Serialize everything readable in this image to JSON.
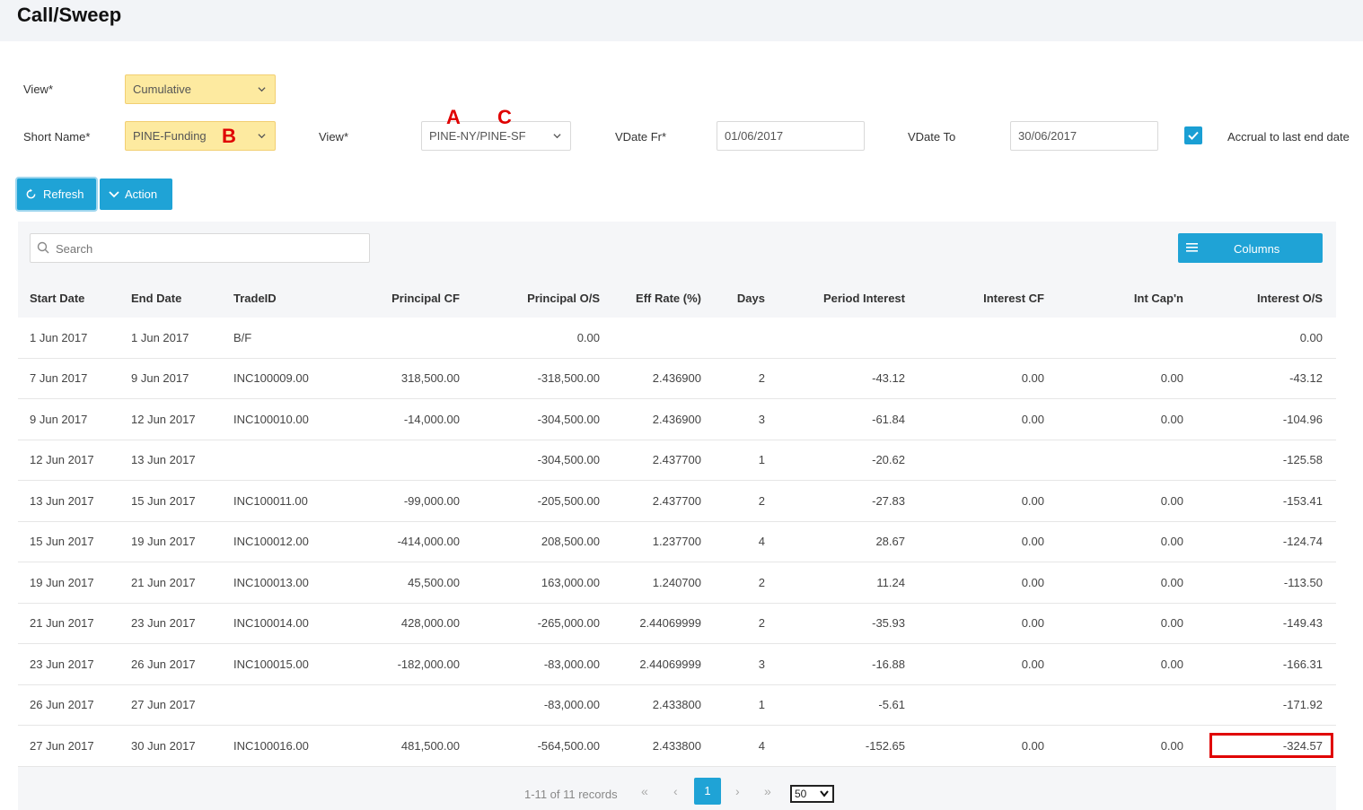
{
  "page": {
    "title": "Call/Sweep"
  },
  "form": {
    "view1": {
      "label": "View*",
      "value": "Cumulative"
    },
    "short_name": {
      "label": "Short Name*",
      "value": "PINE-Funding",
      "marker": "B"
    },
    "view2": {
      "label": "View*",
      "value": "PINE-NY/PINE-SF",
      "marker_a": "A",
      "marker_c": "C"
    },
    "vdate_from": {
      "label": "VDate Fr*",
      "value": "01/06/2017"
    },
    "vdate_to": {
      "label": "VDate To",
      "value": "30/06/2017"
    },
    "accrual": {
      "label": "Accrual to last end date",
      "checked": true
    }
  },
  "toolbar": {
    "refresh_label": "Refresh",
    "action_label": "Action"
  },
  "grid": {
    "search_placeholder": "Search",
    "columns_label": "Columns",
    "headers": [
      "Start Date",
      "End Date",
      "TradeID",
      "Principal CF",
      "Principal O/S",
      "Eff Rate (%)",
      "Days",
      "Period Interest",
      "Interest CF",
      "Int Cap'n",
      "Interest O/S"
    ],
    "rows": [
      [
        "1 Jun 2017",
        "1 Jun 2017",
        "B/F",
        "",
        "0.00",
        "",
        "",
        "",
        "",
        "",
        "0.00"
      ],
      [
        "7 Jun 2017",
        "9 Jun 2017",
        "INC100009.00",
        "318,500.00",
        "-318,500.00",
        "2.436900",
        "2",
        "-43.12",
        "0.00",
        "0.00",
        "-43.12"
      ],
      [
        "9 Jun 2017",
        "12 Jun 2017",
        "INC100010.00",
        "-14,000.00",
        "-304,500.00",
        "2.436900",
        "3",
        "-61.84",
        "0.00",
        "0.00",
        "-104.96"
      ],
      [
        "12 Jun 2017",
        "13 Jun 2017",
        "",
        "",
        "-304,500.00",
        "2.437700",
        "1",
        "-20.62",
        "",
        "",
        "-125.58"
      ],
      [
        "13 Jun 2017",
        "15 Jun 2017",
        "INC100011.00",
        "-99,000.00",
        "-205,500.00",
        "2.437700",
        "2",
        "-27.83",
        "0.00",
        "0.00",
        "-153.41"
      ],
      [
        "15 Jun 2017",
        "19 Jun 2017",
        "INC100012.00",
        "-414,000.00",
        "208,500.00",
        "1.237700",
        "4",
        "28.67",
        "0.00",
        "0.00",
        "-124.74"
      ],
      [
        "19 Jun 2017",
        "21 Jun 2017",
        "INC100013.00",
        "45,500.00",
        "163,000.00",
        "1.240700",
        "2",
        "11.24",
        "0.00",
        "0.00",
        "-113.50"
      ],
      [
        "21 Jun 2017",
        "23 Jun 2017",
        "INC100014.00",
        "428,000.00",
        "-265,000.00",
        "2.44069999",
        "2",
        "-35.93",
        "0.00",
        "0.00",
        "-149.43"
      ],
      [
        "23 Jun 2017",
        "26 Jun 2017",
        "INC100015.00",
        "-182,000.00",
        "-83,000.00",
        "2.44069999",
        "3",
        "-16.88",
        "0.00",
        "0.00",
        "-166.31"
      ],
      [
        "26 Jun 2017",
        "27 Jun 2017",
        "",
        "",
        "-83,000.00",
        "2.433800",
        "1",
        "-5.61",
        "",
        "",
        "-171.92"
      ],
      [
        "27 Jun 2017",
        "30 Jun 2017",
        "INC100016.00",
        "481,500.00",
        "-564,500.00",
        "2.433800",
        "4",
        "-152.65",
        "0.00",
        "0.00",
        "-324.57"
      ]
    ]
  },
  "pagination": {
    "records_text": "1-11 of 11 records",
    "first": "«",
    "prev": "‹",
    "next": "›",
    "last": "»",
    "current_page": "1",
    "page_size": "50"
  },
  "colors": {
    "accent": "#1fa3d6",
    "highlight": "#e00000",
    "yellow": "#fdeaa0"
  }
}
